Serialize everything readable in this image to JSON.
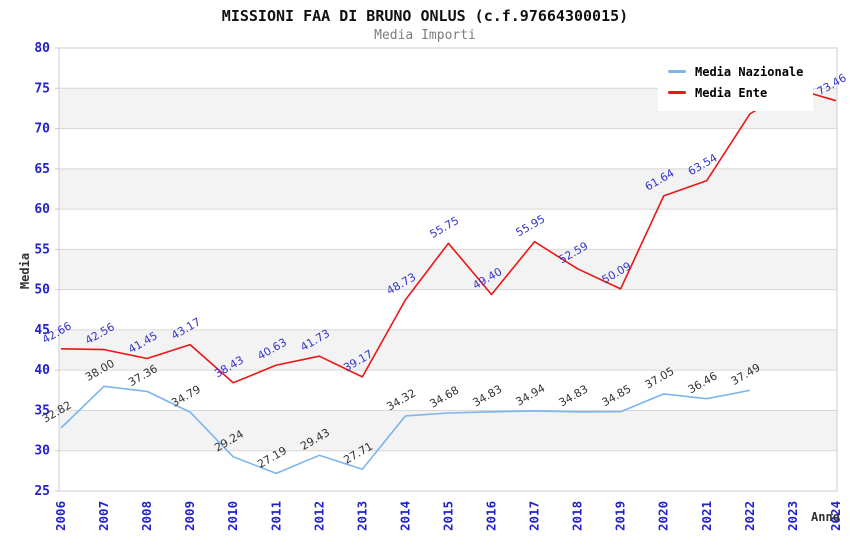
{
  "title": "MISSIONI FAA DI BRUNO ONLUS (c.f.97664300015)",
  "subtitle": "Media Importi",
  "legend": {
    "items": [
      {
        "label": "Media Nazionale",
        "color": "#7cb5ec"
      },
      {
        "label": "Media Ente",
        "color": "#ed1515"
      }
    ]
  },
  "colors": {
    "axis_tick_label": "#2222cc",
    "nazionale_point_label": "#333333",
    "ente_point_label": "#3333cc",
    "gridline": "#d8d8d8",
    "band_fill": "#f3f3f3",
    "plot_border": "#cccccc"
  },
  "chart_data": {
    "type": "line",
    "title": "MISSIONI FAA DI BRUNO ONLUS (c.f.97664300015)",
    "subtitle": "Media Importi",
    "xlabel": "Anno",
    "ylabel": "Media",
    "x": [
      2006,
      2007,
      2008,
      2009,
      2010,
      2011,
      2012,
      2013,
      2014,
      2015,
      2016,
      2017,
      2018,
      2019,
      2020,
      2021,
      2022,
      2023,
      2024
    ],
    "ylim": [
      25,
      80
    ],
    "ytick_step": 5,
    "grid": "horizontal-bands-alternating",
    "legend_position": "top-right-overlay",
    "point_labels": "rotated -30deg, two decimals",
    "series": [
      {
        "name": "Media Nazionale",
        "color": "#7cb5ec",
        "label_color": "#333333",
        "values": [
          32.82,
          38.0,
          37.36,
          34.79,
          29.24,
          27.19,
          29.43,
          27.71,
          34.32,
          34.68,
          34.83,
          34.94,
          34.83,
          34.85,
          37.05,
          36.46,
          37.49
        ]
      },
      {
        "name": "Media Ente",
        "color": "#ed1515",
        "label_color": "#3333cc",
        "values": [
          42.66,
          42.56,
          41.45,
          43.17,
          38.43,
          40.63,
          41.73,
          39.17,
          48.73,
          55.75,
          49.4,
          55.95,
          52.59,
          50.09,
          61.64,
          63.54,
          71.8,
          75.03,
          73.46
        ]
      }
    ]
  }
}
